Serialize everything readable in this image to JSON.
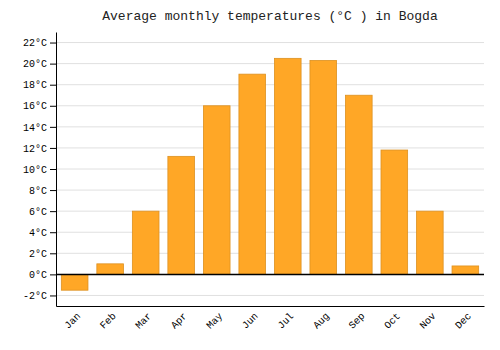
{
  "chart_data": {
    "type": "bar",
    "title": "Average monthly temperatures (°C ) in Bogda",
    "categories": [
      "Jan",
      "Feb",
      "Mar",
      "Apr",
      "May",
      "Jun",
      "Jul",
      "Aug",
      "Sep",
      "Oct",
      "Nov",
      "Dec"
    ],
    "values": [
      -1.5,
      1.0,
      6.0,
      11.2,
      16.0,
      19.0,
      20.5,
      20.3,
      17.0,
      11.8,
      6.0,
      0.8
    ],
    "color": "#FFA726",
    "ylim": [
      -3,
      23
    ],
    "yticks": [
      {
        "value": -2,
        "label": "-2°C"
      },
      {
        "value": 0,
        "label": "0°C"
      },
      {
        "value": 2,
        "label": "2°C"
      },
      {
        "value": 4,
        "label": "4°C"
      },
      {
        "value": 6,
        "label": "6°C"
      },
      {
        "value": 8,
        "label": "8°C"
      },
      {
        "value": 10,
        "label": "10°C"
      },
      {
        "value": 12,
        "label": "12°C"
      },
      {
        "value": 14,
        "label": "14°C"
      },
      {
        "value": 16,
        "label": "16°C"
      },
      {
        "value": 18,
        "label": "18°C"
      },
      {
        "value": 20,
        "label": "20°C"
      },
      {
        "value": 22,
        "label": "22°C"
      }
    ],
    "grid": true
  }
}
